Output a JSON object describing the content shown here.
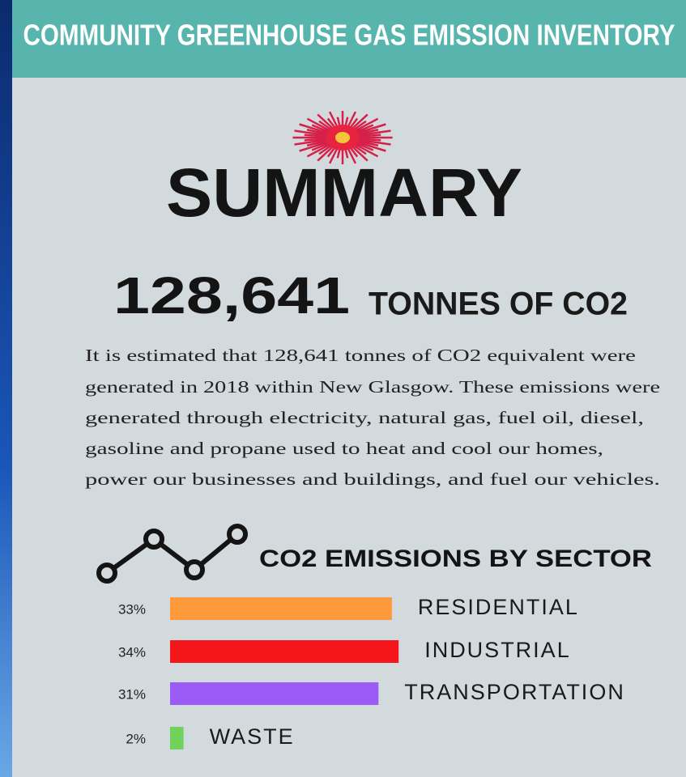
{
  "header": {
    "title": "COMMUNITY GREENHOUSE GAS EMISSION INVENTORY"
  },
  "summary": {
    "heading": "SUMMARY",
    "total": "128,641",
    "total_unit": "TONNES OF CO2",
    "lines": [
      "It is estimated that 128,641 tonnes of CO2 equivalent were",
      "generated in 2018 within New Glasgow. These emissions were",
      "generated through electricity, natural gas, fuel oil, diesel,",
      "gasoline and propane used to heat and cool our homes,",
      "power our businesses and buildings, and fuel our vehicles."
    ]
  },
  "chart_data": {
    "type": "bar",
    "title": "CO2 EMISSIONS BY SECTOR",
    "categories": [
      "RESIDENTIAL",
      "INDUSTRIAL",
      "TRANSPORTATION",
      "WASTE"
    ],
    "values": [
      33,
      34,
      31,
      2
    ],
    "value_labels": [
      "33%",
      "34%",
      "31%",
      "2%"
    ],
    "colors": [
      "#ff9a3c",
      "#f5161b",
      "#9a5cf5",
      "#6fd35b"
    ]
  }
}
